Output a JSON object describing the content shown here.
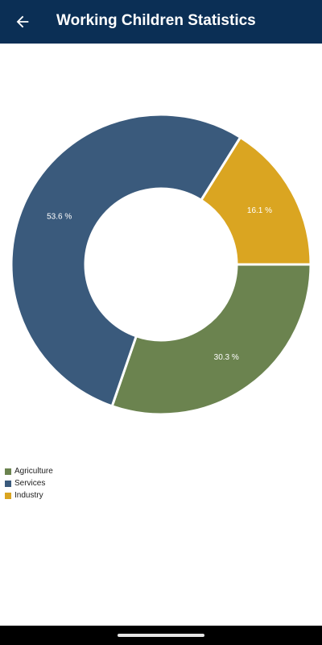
{
  "header": {
    "title": "Working Children Statistics",
    "back_icon": "arrow-left-icon"
  },
  "chart_data": {
    "type": "pie",
    "variant": "donut",
    "title": "",
    "categories": [
      "Agriculture",
      "Services",
      "Industry"
    ],
    "values": [
      30.3,
      53.6,
      16.1
    ],
    "labels": [
      "30.3 %",
      "53.6 %",
      "16.1 %"
    ],
    "colors": [
      "#6b834f",
      "#3a5a7c",
      "#daa521"
    ],
    "legend_position": "bottom-left"
  },
  "legend": {
    "items": [
      {
        "label": "Agriculture",
        "color": "#6b834f"
      },
      {
        "label": "Services",
        "color": "#3a5a7c"
      },
      {
        "label": "Industry",
        "color": "#daa521"
      }
    ]
  },
  "colors": {
    "app_bar": "#0b2f55",
    "background": "#ffffff"
  }
}
